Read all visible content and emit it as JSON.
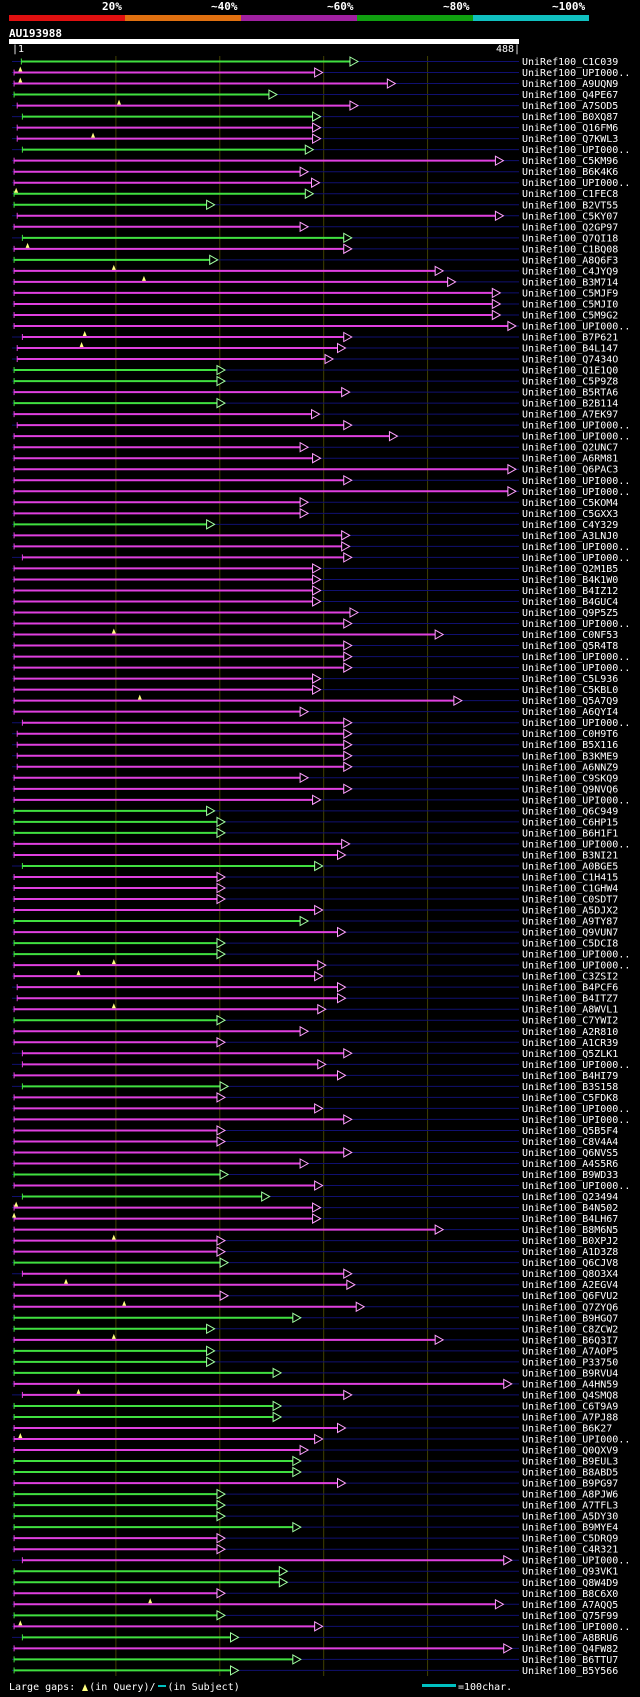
{
  "header": {
    "percent_labels": [
      "20%",
      "~40%",
      "~60%",
      "~80%",
      "~100%"
    ],
    "percent_colors": [
      "#e01010",
      "#e07010",
      "#a020a0",
      "#10a010",
      "#10c0c0"
    ]
  },
  "query": {
    "name": "AU193988",
    "start": "|1",
    "end": "488|"
  },
  "legend": {
    "large_gaps": "Large gaps:",
    "in_query": "(in Query)/",
    "in_subject": "(in Subject)",
    "scale_note": "=100char."
  },
  "chart_data": {
    "type": "alignment",
    "query_length": 488,
    "hits": [
      {
        "name": "UniRef100_C1C039",
        "start": 9,
        "end": 333,
        "color": "green"
      },
      {
        "name": "UniRef100_UPI000..",
        "start": 2,
        "end": 299,
        "color": "magenta",
        "gap": 8
      },
      {
        "name": "UniRef100_A9UQN9",
        "start": 2,
        "end": 369,
        "color": "magenta",
        "gap": 8
      },
      {
        "name": "UniRef100_Q4PE67",
        "start": 2,
        "end": 255,
        "color": "green"
      },
      {
        "name": "UniRef100_A7SOD5",
        "start": 5,
        "end": 333,
        "color": "magenta",
        "gap": 103
      },
      {
        "name": "UniRef100_B0XQ87",
        "start": 10,
        "end": 297,
        "color": "green"
      },
      {
        "name": "UniRef100_Q16FM6",
        "start": 5,
        "end": 297,
        "color": "magenta"
      },
      {
        "name": "UniRef100_Q7KWL3",
        "start": 5,
        "end": 297,
        "color": "magenta",
        "gap": 78
      },
      {
        "name": "UniRef100_UPI000..",
        "start": 10,
        "end": 290,
        "color": "green"
      },
      {
        "name": "UniRef100_C5KM96",
        "start": 2,
        "end": 473,
        "color": "magenta"
      },
      {
        "name": "UniRef100_B6K4K6",
        "start": 2,
        "end": 285,
        "color": "magenta"
      },
      {
        "name": "UniRef100_UPI000..",
        "start": 2,
        "end": 296,
        "color": "magenta"
      },
      {
        "name": "UniRef100_C1FEC8",
        "start": 2,
        "end": 290,
        "color": "green",
        "gap": 4
      },
      {
        "name": "UniRef100_B2VT55",
        "start": 2,
        "end": 195,
        "color": "green"
      },
      {
        "name": "UniRef100_C5KY07",
        "start": 5,
        "end": 473,
        "color": "magenta"
      },
      {
        "name": "UniRef100_Q2GP97",
        "start": 2,
        "end": 285,
        "color": "magenta"
      },
      {
        "name": "UniRef100_Q7QI18",
        "start": 10,
        "end": 327,
        "color": "green"
      },
      {
        "name": "UniRef100_C1BQ08",
        "start": 2,
        "end": 327,
        "color": "magenta",
        "gap": 15
      },
      {
        "name": "UniRef100_A8Q6F3",
        "start": 2,
        "end": 198,
        "color": "green"
      },
      {
        "name": "UniRef100_C4JYQ9",
        "start": 2,
        "end": 415,
        "color": "magenta",
        "gap": 98
      },
      {
        "name": "UniRef100_B3M714",
        "start": 2,
        "end": 427,
        "color": "magenta",
        "gap": 127
      },
      {
        "name": "UniRef100_C5MJF9",
        "start": 2,
        "end": 470,
        "color": "magenta"
      },
      {
        "name": "UniRef100_C5MJI0",
        "start": 2,
        "end": 470,
        "color": "magenta"
      },
      {
        "name": "UniRef100_C5M9G2",
        "start": 2,
        "end": 470,
        "color": "magenta"
      },
      {
        "name": "UniRef100_UPI000..",
        "start": 2,
        "end": 485,
        "color": "magenta"
      },
      {
        "name": "UniRef100_B7P621",
        "start": 10,
        "end": 327,
        "color": "magenta",
        "gap": 70
      },
      {
        "name": "UniRef100_B4L147",
        "start": 5,
        "end": 321,
        "color": "magenta",
        "gap": 67
      },
      {
        "name": "UniRef100_Q7434O",
        "start": 5,
        "end": 309,
        "color": "magenta"
      },
      {
        "name": "UniRef100_Q1E1Q0",
        "start": 2,
        "end": 205,
        "color": "green"
      },
      {
        "name": "UniRef100_C5P9Z8",
        "start": 2,
        "end": 205,
        "color": "green"
      },
      {
        "name": "UniRef100_B5RTA6",
        "start": 2,
        "end": 325,
        "color": "magenta"
      },
      {
        "name": "UniRef100_B2B114",
        "start": 2,
        "end": 205,
        "color": "green"
      },
      {
        "name": "UniRef100_A7EK97",
        "start": 2,
        "end": 296,
        "color": "magenta"
      },
      {
        "name": "UniRef100_UPI000..",
        "start": 5,
        "end": 327,
        "color": "magenta"
      },
      {
        "name": "UniRef100_UPI000..",
        "start": 2,
        "end": 371,
        "color": "magenta"
      },
      {
        "name": "UniRef100_Q2UNC7",
        "start": 2,
        "end": 285,
        "color": "magenta"
      },
      {
        "name": "UniRef100_A6RM81",
        "start": 2,
        "end": 297,
        "color": "magenta"
      },
      {
        "name": "UniRef100_Q6PAC3",
        "start": 2,
        "end": 485,
        "color": "magenta"
      },
      {
        "name": "UniRef100_UPI000..",
        "start": 2,
        "end": 327,
        "color": "magenta"
      },
      {
        "name": "UniRef100_UPI000..",
        "start": 2,
        "end": 485,
        "color": "magenta"
      },
      {
        "name": "UniRef100_C5KOM4",
        "start": 2,
        "end": 285,
        "color": "magenta"
      },
      {
        "name": "UniRef100_C5GXX3",
        "start": 2,
        "end": 285,
        "color": "magenta"
      },
      {
        "name": "UniRef100_C4Y329",
        "start": 2,
        "end": 195,
        "color": "green"
      },
      {
        "name": "UniRef100_A3LNJ0",
        "start": 2,
        "end": 325,
        "color": "magenta"
      },
      {
        "name": "UniRef100_UPI000..",
        "start": 2,
        "end": 325,
        "color": "magenta"
      },
      {
        "name": "UniRef100_UPI000..",
        "start": 10,
        "end": 327,
        "color": "magenta"
      },
      {
        "name": "UniRef100_Q2M1B5",
        "start": 2,
        "end": 297,
        "color": "magenta"
      },
      {
        "name": "UniRef100_B4K1W0",
        "start": 2,
        "end": 297,
        "color": "magenta"
      },
      {
        "name": "UniRef100_B4IZ12",
        "start": 2,
        "end": 297,
        "color": "magenta"
      },
      {
        "name": "UniRef100_B4GUC4",
        "start": 2,
        "end": 297,
        "color": "magenta"
      },
      {
        "name": "UniRef100_Q9P5Z5",
        "start": 2,
        "end": 333,
        "color": "magenta"
      },
      {
        "name": "UniRef100_UPI000..",
        "start": 2,
        "end": 327,
        "color": "magenta"
      },
      {
        "name": "UniRef100_C0NF53",
        "start": 2,
        "end": 415,
        "color": "magenta",
        "gap": 98
      },
      {
        "name": "UniRef100_Q5R4T8",
        "start": 2,
        "end": 327,
        "color": "magenta"
      },
      {
        "name": "UniRef100_UPI000..",
        "start": 2,
        "end": 327,
        "color": "magenta"
      },
      {
        "name": "UniRef100_UPI000..",
        "start": 2,
        "end": 327,
        "color": "magenta"
      },
      {
        "name": "UniRef100_C5L936",
        "start": 2,
        "end": 297,
        "color": "magenta"
      },
      {
        "name": "UniRef100_C5KBL0",
        "start": 2,
        "end": 297,
        "color": "magenta"
      },
      {
        "name": "UniRef100_Q5A7Q9",
        "start": 2,
        "end": 433,
        "color": "magenta",
        "gap": 123
      },
      {
        "name": "UniRef100_A6QYI4",
        "start": 2,
        "end": 285,
        "color": "magenta"
      },
      {
        "name": "UniRef100_UPI000..",
        "start": 10,
        "end": 327,
        "color": "magenta"
      },
      {
        "name": "UniRef100_C0H9T6",
        "start": 5,
        "end": 327,
        "color": "magenta"
      },
      {
        "name": "UniRef100_B5X116",
        "start": 5,
        "end": 327,
        "color": "magenta"
      },
      {
        "name": "UniRef100_B3KME9",
        "start": 5,
        "end": 327,
        "color": "magenta"
      },
      {
        "name": "UniRef100_A6NNZ9",
        "start": 5,
        "end": 327,
        "color": "magenta"
      },
      {
        "name": "UniRef100_C9SKQ9",
        "start": 2,
        "end": 285,
        "color": "magenta"
      },
      {
        "name": "UniRef100_Q9NVQ6",
        "start": 2,
        "end": 327,
        "color": "magenta"
      },
      {
        "name": "UniRef100_UPI000..",
        "start": 2,
        "end": 297,
        "color": "magenta"
      },
      {
        "name": "UniRef100_Q6C949",
        "start": 2,
        "end": 195,
        "color": "green"
      },
      {
        "name": "UniRef100_C6HP15",
        "start": 2,
        "end": 205,
        "color": "green"
      },
      {
        "name": "UniRef100_B6H1F1",
        "start": 2,
        "end": 205,
        "color": "green"
      },
      {
        "name": "UniRef100_UPI000..",
        "start": 2,
        "end": 325,
        "color": "magenta"
      },
      {
        "name": "UniRef100_B3NI21",
        "start": 2,
        "end": 321,
        "color": "magenta"
      },
      {
        "name": "UniRef100_A0BGE5",
        "start": 10,
        "end": 299,
        "color": "green"
      },
      {
        "name": "UniRef100_C1H415",
        "start": 2,
        "end": 205,
        "color": "magenta"
      },
      {
        "name": "UniRef100_C1GHW4",
        "start": 2,
        "end": 205,
        "color": "magenta"
      },
      {
        "name": "UniRef100_C0SDT7",
        "start": 2,
        "end": 205,
        "color": "magenta"
      },
      {
        "name": "UniRef100_A5DJX2",
        "start": 2,
        "end": 299,
        "color": "magenta"
      },
      {
        "name": "UniRef100_A9TY87",
        "start": 2,
        "end": 285,
        "color": "green"
      },
      {
        "name": "UniRef100_Q9VUN7",
        "start": 2,
        "end": 321,
        "color": "magenta"
      },
      {
        "name": "UniRef100_C5DCI8",
        "start": 2,
        "end": 205,
        "color": "green"
      },
      {
        "name": "UniRef100_UPI000..",
        "start": 2,
        "end": 205,
        "color": "green"
      },
      {
        "name": "UniRef100_UPI000..",
        "start": 2,
        "end": 302,
        "color": "magenta",
        "gap": 98
      },
      {
        "name": "UniRef100_C3ZSI2",
        "start": 2,
        "end": 299,
        "color": "magenta",
        "gap": 64
      },
      {
        "name": "UniRef100_B4PCF6",
        "start": 5,
        "end": 321,
        "color": "magenta"
      },
      {
        "name": "UniRef100_B4ITZ7",
        "start": 5,
        "end": 321,
        "color": "magenta"
      },
      {
        "name": "UniRef100_A8WVL1",
        "start": 2,
        "end": 302,
        "color": "magenta",
        "gap": 98
      },
      {
        "name": "UniRef100_C7YWI2",
        "start": 2,
        "end": 205,
        "color": "green"
      },
      {
        "name": "UniRef100_A2R810",
        "start": 2,
        "end": 285,
        "color": "magenta"
      },
      {
        "name": "UniRef100_A1CR39",
        "start": 2,
        "end": 205,
        "color": "magenta"
      },
      {
        "name": "UniRef100_Q5ZLK1",
        "start": 10,
        "end": 327,
        "color": "magenta"
      },
      {
        "name": "UniRef100_UPI000..",
        "start": 10,
        "end": 302,
        "color": "magenta"
      },
      {
        "name": "UniRef100_B4HI79",
        "start": 2,
        "end": 321,
        "color": "magenta"
      },
      {
        "name": "UniRef100_B3S158",
        "start": 10,
        "end": 208,
        "color": "green"
      },
      {
        "name": "UniRef100_C5FDK8",
        "start": 2,
        "end": 205,
        "color": "magenta"
      },
      {
        "name": "UniRef100_UPI000..",
        "start": 2,
        "end": 299,
        "color": "magenta"
      },
      {
        "name": "UniRef100_UPI000..",
        "start": 2,
        "end": 327,
        "color": "magenta"
      },
      {
        "name": "UniRef100_Q5B5F4",
        "start": 2,
        "end": 205,
        "color": "magenta"
      },
      {
        "name": "UniRef100_C8V4A4",
        "start": 2,
        "end": 205,
        "color": "magenta"
      },
      {
        "name": "UniRef100_Q6NVS5",
        "start": 2,
        "end": 327,
        "color": "magenta"
      },
      {
        "name": "UniRef100_A4S5R6",
        "start": 2,
        "end": 285,
        "color": "magenta"
      },
      {
        "name": "UniRef100_B9WD33",
        "start": 2,
        "end": 208,
        "color": "green"
      },
      {
        "name": "UniRef100_UPI000..",
        "start": 2,
        "end": 299,
        "color": "magenta"
      },
      {
        "name": "UniRef100_Q23494",
        "start": 10,
        "end": 248,
        "color": "green"
      },
      {
        "name": "UniRef100_B4N502",
        "start": 2,
        "end": 297,
        "color": "magenta",
        "gap": 4
      },
      {
        "name": "UniRef100_B4LH67",
        "start": 2,
        "end": 297,
        "color": "magenta",
        "gap": 2
      },
      {
        "name": "UniRef100_B8M6N5",
        "start": 2,
        "end": 415,
        "color": "magenta"
      },
      {
        "name": "UniRef100_B0XPJ2",
        "start": 2,
        "end": 205,
        "color": "magenta",
        "gap": 98
      },
      {
        "name": "UniRef100_A1D3Z8",
        "start": 2,
        "end": 205,
        "color": "magenta"
      },
      {
        "name": "UniRef100_Q6CJV8",
        "start": 2,
        "end": 208,
        "color": "green"
      },
      {
        "name": "UniRef100_Q8O3X4",
        "start": 10,
        "end": 327,
        "color": "magenta"
      },
      {
        "name": "UniRef100_A2EGV4",
        "start": 2,
        "end": 330,
        "color": "magenta",
        "gap": 52
      },
      {
        "name": "UniRef100_Q6FVU2",
        "start": 2,
        "end": 208,
        "color": "magenta"
      },
      {
        "name": "UniRef100_Q7ZYQ6",
        "start": 2,
        "end": 339,
        "color": "magenta",
        "gap": 108
      },
      {
        "name": "UniRef100_B9HGQ7",
        "start": 2,
        "end": 278,
        "color": "green"
      },
      {
        "name": "UniRef100_C8ZCW2",
        "start": 2,
        "end": 195,
        "color": "green"
      },
      {
        "name": "UniRef100_B6Q3I7",
        "start": 2,
        "end": 415,
        "color": "magenta",
        "gap": 98
      },
      {
        "name": "UniRef100_A7AOP5",
        "start": 2,
        "end": 195,
        "color": "green"
      },
      {
        "name": "UniRef100_P33750",
        "start": 2,
        "end": 195,
        "color": "green"
      },
      {
        "name": "UniRef100_B9RVU4",
        "start": 2,
        "end": 259,
        "color": "green"
      },
      {
        "name": "UniRef100_A4HN59",
        "start": 2,
        "end": 481,
        "color": "magenta"
      },
      {
        "name": "UniRef100_Q4SMQ8",
        "start": 10,
        "end": 327,
        "color": "magenta",
        "gap": 64
      },
      {
        "name": "UniRef100_C6T9A9",
        "start": 2,
        "end": 259,
        "color": "green"
      },
      {
        "name": "UniRef100_A7PJ88",
        "start": 2,
        "end": 259,
        "color": "green"
      },
      {
        "name": "UniRef100_B6K27",
        "start": 2,
        "end": 321,
        "color": "magenta"
      },
      {
        "name": "UniRef100_UPI000..",
        "start": 2,
        "end": 299,
        "color": "magenta",
        "gap": 8
      },
      {
        "name": "UniRef100_Q0QXV9",
        "start": 2,
        "end": 285,
        "color": "magenta"
      },
      {
        "name": "UniRef100_B9EUL3",
        "start": 2,
        "end": 278,
        "color": "green"
      },
      {
        "name": "UniRef100_B8ABD5",
        "start": 2,
        "end": 278,
        "color": "green"
      },
      {
        "name": "UniRef100_B9PG97",
        "start": 2,
        "end": 321,
        "color": "magenta"
      },
      {
        "name": "UniRef100_A8PJW6",
        "start": 2,
        "end": 205,
        "color": "green"
      },
      {
        "name": "UniRef100_A7TFL3",
        "start": 2,
        "end": 205,
        "color": "green"
      },
      {
        "name": "UniRef100_A5DY30",
        "start": 2,
        "end": 205,
        "color": "green"
      },
      {
        "name": "UniRef100_B9MYE4",
        "start": 2,
        "end": 278,
        "color": "green"
      },
      {
        "name": "UniRef100_C5DRQ9",
        "start": 2,
        "end": 205,
        "color": "magenta"
      },
      {
        "name": "UniRef100_C4R321",
        "start": 2,
        "end": 205,
        "color": "magenta"
      },
      {
        "name": "UniRef100_UPI000..",
        "start": 10,
        "end": 481,
        "color": "magenta"
      },
      {
        "name": "UniRef100_Q93VK1",
        "start": 2,
        "end": 265,
        "color": "green"
      },
      {
        "name": "UniRef100_Q8W4D9",
        "start": 2,
        "end": 265,
        "color": "green"
      },
      {
        "name": "UniRef100_B8C6X0",
        "start": 2,
        "end": 205,
        "color": "magenta"
      },
      {
        "name": "UniRef100_A7AQQ5",
        "start": 2,
        "end": 473,
        "color": "magenta",
        "gap": 133
      },
      {
        "name": "UniRef100_Q75F99",
        "start": 2,
        "end": 205,
        "color": "green"
      },
      {
        "name": "UniRef100_UPI000..",
        "start": 2,
        "end": 299,
        "color": "magenta",
        "gap": 8
      },
      {
        "name": "UniRef100_A8BRU6",
        "start": 10,
        "end": 218,
        "color": "green"
      },
      {
        "name": "UniRef100_Q4FW82",
        "start": 2,
        "end": 481,
        "color": "magenta"
      },
      {
        "name": "UniRef100_B6TTU7",
        "start": 2,
        "end": 278,
        "color": "green"
      },
      {
        "name": "UniRef100_B5Y566",
        "start": 2,
        "end": 218,
        "color": "green"
      }
    ]
  }
}
